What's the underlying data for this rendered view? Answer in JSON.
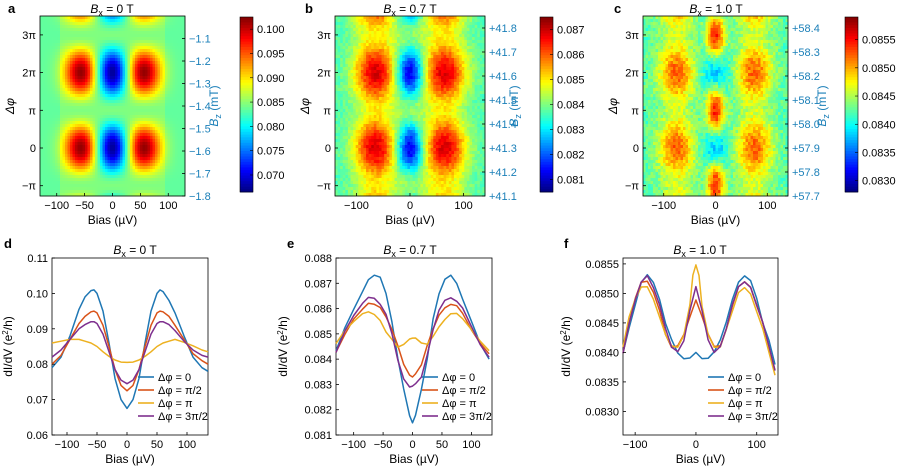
{
  "chart_data": [
    {
      "panel": "a",
      "type": "heatmap",
      "title_main": "B",
      "title_sub": "x",
      "title_rest": " = 0 T",
      "xlabel": "Bias (µV)",
      "ylabel_main": "Δφ",
      "xlim": [
        -130,
        130
      ],
      "ylim": [
        -4.0,
        11.0
      ],
      "xticks": [
        -100,
        -50,
        0,
        50,
        100
      ],
      "xticklabels": [
        "−100",
        "−50",
        "0",
        "50",
        "100"
      ],
      "yticks": [
        -3.1416,
        0,
        3.1416,
        6.2832,
        9.4248
      ],
      "yticklabels": [
        "−π",
        "0",
        "π",
        "2π",
        "3π"
      ],
      "bz_label_main": "B",
      "bz_label_sub": "z",
      "bz_label_rest": " (mT)",
      "bz_range": [
        -1.8,
        -1.0
      ],
      "bz_ticks": [
        -1.8,
        -1.7,
        -1.6,
        -1.5,
        -1.4,
        -1.3,
        -1.2,
        -1.1
      ],
      "bz_ticklabels": [
        "−1.8",
        "−1.7",
        "−1.6",
        "−1.5",
        "−1.4",
        "−1.3",
        "−1.2",
        "−1.1"
      ],
      "colorbar_range": [
        0.0665,
        0.1025
      ],
      "colorbar_ticks": [
        0.07,
        0.075,
        0.08,
        0.085,
        0.09,
        0.095,
        0.1
      ],
      "colorbar_ticklabels": [
        "0.070",
        "0.075",
        "0.080",
        "0.085",
        "0.090",
        "0.095",
        "0.100"
      ],
      "noise": 0.0
    },
    {
      "panel": "b",
      "type": "heatmap",
      "title_main": "B",
      "title_sub": "x",
      "title_rest": " = 0.7 T",
      "xlabel": "Bias (µV)",
      "ylabel_main": "Δφ",
      "xlim": [
        -140,
        140
      ],
      "ylim": [
        -4.0,
        11.0
      ],
      "xticks": [
        -100,
        0,
        100
      ],
      "xticklabels": [
        "−100",
        "0",
        "100"
      ],
      "yticks": [
        -3.1416,
        0,
        3.1416,
        6.2832,
        9.4248
      ],
      "yticklabels": [
        "−π",
        "0",
        "π",
        "2π",
        "3π"
      ],
      "bz_label_main": "B",
      "bz_label_sub": "z",
      "bz_label_rest": " (mT)",
      "bz_range": [
        41.1,
        41.85
      ],
      "bz_ticks": [
        41.1,
        41.2,
        41.3,
        41.4,
        41.5,
        41.6,
        41.7,
        41.8
      ],
      "bz_ticklabels": [
        "+41.1",
        "+41.2",
        "+41.3",
        "+41.4",
        "+41.5",
        "+41.6",
        "+41.7",
        "+41.8"
      ],
      "colorbar_range": [
        0.0805,
        0.0875
      ],
      "colorbar_ticks": [
        0.081,
        0.082,
        0.083,
        0.084,
        0.085,
        0.086,
        0.087
      ],
      "colorbar_ticklabels": [
        "0.081",
        "0.082",
        "0.083",
        "0.084",
        "0.085",
        "0.086",
        "0.087"
      ],
      "noise": 0.2
    },
    {
      "panel": "c",
      "type": "heatmap",
      "title_main": "B",
      "title_sub": "x",
      "title_rest": " = 1.0 T",
      "xlabel": "Bias (µV)",
      "ylabel_main": "Δφ",
      "xlim": [
        -140,
        140
      ],
      "ylim": [
        -4.0,
        11.0
      ],
      "xticks": [
        -100,
        0,
        100
      ],
      "xticklabels": [
        "−100",
        "0",
        "100"
      ],
      "yticks": [
        -3.1416,
        0,
        3.1416,
        6.2832,
        9.4248
      ],
      "yticklabels": [
        "−π",
        "0",
        "π",
        "2π",
        "3π"
      ],
      "bz_label_main": "B",
      "bz_label_sub": "z",
      "bz_label_rest": " (mT)",
      "bz_range": [
        57.7,
        58.45
      ],
      "bz_ticks": [
        57.7,
        57.8,
        57.9,
        58.0,
        58.1,
        58.2,
        58.3,
        58.4
      ],
      "bz_ticklabels": [
        "+57.7",
        "+57.8",
        "+57.9",
        "+58.0",
        "+58.1",
        "+58.2",
        "+58.3",
        "+58.4"
      ],
      "colorbar_range": [
        0.0828,
        0.0859
      ],
      "colorbar_ticks": [
        0.083,
        0.0835,
        0.084,
        0.0845,
        0.085,
        0.0855
      ],
      "colorbar_ticklabels": [
        "0.0830",
        "0.0835",
        "0.0840",
        "0.0845",
        "0.0850",
        "0.0855"
      ],
      "noise": 0.3
    },
    {
      "panel": "d",
      "type": "line",
      "title_main": "B",
      "title_sub": "x",
      "title_rest": " = 0 T",
      "xlabel": "Bias (µV)",
      "ylabel_main": "dI/dV (e",
      "ylabel_sup": "2",
      "ylabel_rest": "/h)",
      "xlim": [
        -125,
        135
      ],
      "ylim": [
        0.06,
        0.11
      ],
      "xticks": [
        -100,
        -50,
        0,
        50,
        100
      ],
      "xticklabels": [
        "−100",
        "−50",
        "0",
        "50",
        "100"
      ],
      "yticks": [
        0.06,
        0.07,
        0.08,
        0.09,
        0.1,
        0.11
      ],
      "yticklabels": [
        "0.06",
        "0.07",
        "0.08",
        "0.09",
        "0.10",
        "0.11"
      ],
      "legend_position": "bottom-right",
      "series": [
        {
          "name": "Δφ = 0",
          "color": "#1f77b4",
          "x": [
            -125,
            -110,
            -95,
            -80,
            -70,
            -60,
            -55,
            -50,
            -40,
            -30,
            -20,
            -10,
            0,
            10,
            20,
            30,
            40,
            50,
            55,
            60,
            70,
            80,
            95,
            110,
            125,
            135
          ],
          "y": [
            0.079,
            0.082,
            0.088,
            0.0955,
            0.099,
            0.1008,
            0.101,
            0.1,
            0.095,
            0.086,
            0.076,
            0.07,
            0.0675,
            0.07,
            0.076,
            0.086,
            0.095,
            0.1,
            0.101,
            0.1005,
            0.098,
            0.0945,
            0.088,
            0.082,
            0.079,
            0.078
          ]
        },
        {
          "name": "Δφ = π/2",
          "color": "#d95319",
          "x": [
            -125,
            -110,
            -95,
            -80,
            -70,
            -60,
            -55,
            -50,
            -40,
            -30,
            -20,
            -10,
            0,
            10,
            20,
            30,
            40,
            50,
            55,
            60,
            70,
            80,
            95,
            110,
            125,
            135
          ],
          "y": [
            0.08,
            0.0825,
            0.087,
            0.0915,
            0.0935,
            0.0948,
            0.095,
            0.0945,
            0.091,
            0.085,
            0.0785,
            0.074,
            0.0725,
            0.074,
            0.0785,
            0.085,
            0.091,
            0.0945,
            0.095,
            0.0948,
            0.0935,
            0.091,
            0.087,
            0.083,
            0.081,
            0.08
          ]
        },
        {
          "name": "Δφ = π",
          "color": "#edb120",
          "x": [
            -125,
            -110,
            -95,
            -80,
            -70,
            -60,
            -50,
            -40,
            -30,
            -20,
            -10,
            0,
            10,
            20,
            30,
            40,
            50,
            60,
            70,
            80,
            95,
            110,
            125,
            135
          ],
          "y": [
            0.086,
            0.0865,
            0.087,
            0.087,
            0.0865,
            0.086,
            0.085,
            0.0835,
            0.0822,
            0.0812,
            0.0806,
            0.0805,
            0.0806,
            0.0812,
            0.0822,
            0.0835,
            0.085,
            0.086,
            0.0865,
            0.087,
            0.0862,
            0.0852,
            0.084,
            0.0835
          ]
        },
        {
          "name": "Δφ = 3π/2",
          "color": "#7e2f8e",
          "x": [
            -125,
            -110,
            -95,
            -80,
            -70,
            -60,
            -55,
            -50,
            -40,
            -30,
            -20,
            -10,
            0,
            10,
            20,
            30,
            40,
            50,
            55,
            60,
            70,
            80,
            95,
            110,
            125,
            135
          ],
          "y": [
            0.082,
            0.084,
            0.087,
            0.09,
            0.0912,
            0.092,
            0.092,
            0.0915,
            0.0885,
            0.0835,
            0.0785,
            0.0755,
            0.0745,
            0.0755,
            0.0785,
            0.0835,
            0.0885,
            0.0915,
            0.092,
            0.092,
            0.0912,
            0.0895,
            0.0865,
            0.084,
            0.0825,
            0.082
          ]
        }
      ]
    },
    {
      "panel": "e",
      "type": "line",
      "title_main": "B",
      "title_sub": "x",
      "title_rest": " = 0.7 T",
      "xlabel": "Bias (µV)",
      "ylabel_main": "dI/dV (e",
      "ylabel_sup": "2",
      "ylabel_rest": "/h)",
      "xlim": [
        -130,
        135
      ],
      "ylim": [
        0.081,
        0.088
      ],
      "xticks": [
        -100,
        -50,
        0,
        50,
        100
      ],
      "xticklabels": [
        "−100",
        "−50",
        "0",
        "50",
        "100"
      ],
      "yticks": [
        0.081,
        0.082,
        0.083,
        0.084,
        0.085,
        0.086,
        0.087,
        0.088
      ],
      "yticklabels": [
        "0.081",
        "0.082",
        "0.083",
        "0.084",
        "0.085",
        "0.086",
        "0.087",
        "0.088"
      ],
      "legend_position": "bottom-right",
      "series": [
        {
          "name": "Δφ = 0",
          "color": "#1f77b4",
          "x": [
            -130,
            -115,
            -100,
            -85,
            -75,
            -65,
            -55,
            -45,
            -35,
            -25,
            -15,
            -5,
            0,
            5,
            15,
            25,
            35,
            45,
            55,
            65,
            75,
            85,
            100,
            115,
            130
          ],
          "y": [
            0.0843,
            0.0852,
            0.086,
            0.0867,
            0.0871,
            0.0873,
            0.0872,
            0.0866,
            0.0855,
            0.084,
            0.0828,
            0.0818,
            0.0815,
            0.0818,
            0.0828,
            0.084,
            0.0856,
            0.0866,
            0.0872,
            0.0873,
            0.087,
            0.0864,
            0.0855,
            0.0846,
            0.084
          ]
        },
        {
          "name": "Δφ = π/2",
          "color": "#d95319",
          "x": [
            -130,
            -115,
            -100,
            -85,
            -75,
            -65,
            -55,
            -45,
            -35,
            -25,
            -15,
            -5,
            0,
            5,
            15,
            25,
            35,
            45,
            55,
            65,
            75,
            85,
            100,
            115,
            130
          ],
          "y": [
            0.0843,
            0.085,
            0.0856,
            0.086,
            0.0862,
            0.0862,
            0.086,
            0.0857,
            0.0852,
            0.0845,
            0.0838,
            0.0834,
            0.0833,
            0.0834,
            0.0838,
            0.0845,
            0.0852,
            0.0857,
            0.086,
            0.0862,
            0.0861,
            0.0858,
            0.0852,
            0.0846,
            0.0842
          ]
        },
        {
          "name": "Δφ = π",
          "color": "#edb120",
          "x": [
            -130,
            -115,
            -100,
            -85,
            -75,
            -65,
            -55,
            -45,
            -35,
            -25,
            -15,
            -5,
            0,
            5,
            15,
            25,
            35,
            45,
            55,
            65,
            75,
            85,
            100,
            115,
            130
          ],
          "y": [
            0.0846,
            0.0851,
            0.0855,
            0.0858,
            0.0859,
            0.0858,
            0.0855,
            0.0851,
            0.0848,
            0.0845,
            0.0846,
            0.0848,
            0.0848,
            0.0848,
            0.0846,
            0.0846,
            0.0849,
            0.0853,
            0.0856,
            0.0858,
            0.0858,
            0.0856,
            0.0852,
            0.0847,
            0.0843
          ]
        },
        {
          "name": "Δφ = 3π/2",
          "color": "#7e2f8e",
          "x": [
            -130,
            -115,
            -100,
            -85,
            -75,
            -65,
            -55,
            -45,
            -35,
            -25,
            -15,
            -5,
            0,
            5,
            15,
            25,
            35,
            45,
            55,
            65,
            75,
            85,
            100,
            115,
            130
          ],
          "y": [
            0.0843,
            0.0851,
            0.0857,
            0.0862,
            0.0864,
            0.0864,
            0.0862,
            0.0858,
            0.085,
            0.084,
            0.0832,
            0.0829,
            0.0829,
            0.083,
            0.0833,
            0.0842,
            0.0852,
            0.0859,
            0.0863,
            0.0864,
            0.0863,
            0.086,
            0.0853,
            0.0846,
            0.0841
          ]
        }
      ]
    },
    {
      "panel": "f",
      "type": "line",
      "title_main": "B",
      "title_sub": "x",
      "title_rest": " = 1.0 T",
      "xlabel": "Bias (µV)",
      "ylabel_main": "dI/dV (e",
      "ylabel_sup": "2",
      "ylabel_rest": "/h)",
      "xlim": [
        -120,
        135
      ],
      "ylim": [
        0.0826,
        0.0856
      ],
      "xticks": [
        -100,
        0,
        100
      ],
      "xticklabels": [
        "−100",
        "0",
        "100"
      ],
      "yticks": [
        0.083,
        0.0835,
        0.084,
        0.0845,
        0.085,
        0.0855
      ],
      "yticklabels": [
        "0.0830",
        "0.0835",
        "0.0840",
        "0.0845",
        "0.0850",
        "0.0855"
      ],
      "legend_position": "bottom-right",
      "series": [
        {
          "name": "Δφ = 0",
          "color": "#1f77b4",
          "x": [
            -120,
            -110,
            -100,
            -90,
            -80,
            -70,
            -60,
            -50,
            -40,
            -30,
            -20,
            -10,
            0,
            10,
            20,
            30,
            40,
            50,
            60,
            70,
            80,
            90,
            100,
            110,
            120,
            130
          ],
          "y": [
            0.084,
            0.0844,
            0.0848,
            0.0852,
            0.0853,
            0.0852,
            0.0849,
            0.0845,
            0.0842,
            0.084,
            0.0839,
            0.0839,
            0.084,
            0.0839,
            0.0839,
            0.084,
            0.0842,
            0.0845,
            0.0849,
            0.0852,
            0.0853,
            0.0852,
            0.0849,
            0.0845,
            0.0842,
            0.0838
          ]
        },
        {
          "name": "Δφ = π/2",
          "color": "#d95319",
          "x": [
            -120,
            -110,
            -100,
            -90,
            -80,
            -70,
            -60,
            -50,
            -40,
            -30,
            -20,
            -10,
            0,
            10,
            20,
            30,
            40,
            50,
            60,
            70,
            80,
            90,
            100,
            110,
            120,
            130
          ],
          "y": [
            0.084,
            0.0845,
            0.0849,
            0.0852,
            0.0852,
            0.085,
            0.0847,
            0.0843,
            0.0841,
            0.0841,
            0.0843,
            0.0846,
            0.0849,
            0.0846,
            0.0843,
            0.0841,
            0.0841,
            0.0844,
            0.0848,
            0.0851,
            0.0852,
            0.0851,
            0.0848,
            0.0845,
            0.0841,
            0.0837
          ]
        },
        {
          "name": "Δφ = π",
          "color": "#edb120",
          "x": [
            -120,
            -110,
            -100,
            -90,
            -80,
            -70,
            -60,
            -50,
            -40,
            -30,
            -20,
            -10,
            -5,
            0,
            5,
            10,
            20,
            30,
            40,
            50,
            60,
            70,
            80,
            90,
            100,
            110,
            120,
            130
          ],
          "y": [
            0.0841,
            0.0846,
            0.0849,
            0.0851,
            0.0851,
            0.0849,
            0.0846,
            0.0843,
            0.0841,
            0.0841,
            0.0843,
            0.0848,
            0.0853,
            0.0855,
            0.0853,
            0.0848,
            0.0843,
            0.0841,
            0.0841,
            0.0844,
            0.0847,
            0.085,
            0.0851,
            0.085,
            0.0847,
            0.0844,
            0.084,
            0.0836
          ]
        },
        {
          "name": "Δφ = 3π/2",
          "color": "#7e2f8e",
          "x": [
            -120,
            -110,
            -100,
            -90,
            -80,
            -70,
            -60,
            -50,
            -40,
            -30,
            -20,
            -10,
            0,
            10,
            20,
            30,
            40,
            50,
            60,
            70,
            80,
            90,
            100,
            110,
            120,
            130
          ],
          "y": [
            0.084,
            0.0845,
            0.0849,
            0.0852,
            0.0853,
            0.0851,
            0.0848,
            0.0844,
            0.0841,
            0.084,
            0.0842,
            0.0847,
            0.0851,
            0.0847,
            0.0842,
            0.084,
            0.0841,
            0.0844,
            0.0848,
            0.0851,
            0.0852,
            0.0851,
            0.0848,
            0.0845,
            0.0841,
            0.0837
          ]
        }
      ]
    }
  ]
}
